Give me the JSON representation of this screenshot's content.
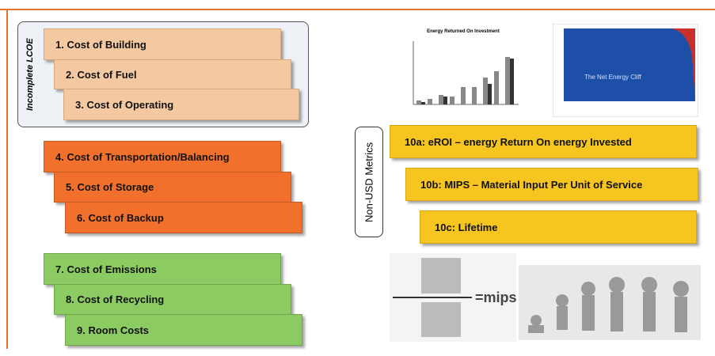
{
  "lcoe_group": {
    "label": "Incomplete LCOE",
    "items": [
      "1. Cost of Building",
      "2. Cost of Fuel",
      "3. Cost of Operating"
    ]
  },
  "system_costs": [
    "4. Cost of Transportation/Balancing",
    "5. Cost of Storage",
    "6. Cost of Backup"
  ],
  "external_costs": [
    "7. Cost of Emissions",
    "8. Cost of Recycling",
    "9. Room Costs"
  ],
  "metrics_group": {
    "label": "Non-USD Metrics",
    "items": [
      "10a: eROI – energy Return On energy Invested",
      "10b: MIPS – Material Input Per Unit of Service",
      "10c: Lifetime"
    ]
  },
  "images": {
    "eroi_chart_title": "Energy Returned On Investment",
    "net_energy_title": "The Net Energy Cliff",
    "mips_formula": "=mips"
  }
}
